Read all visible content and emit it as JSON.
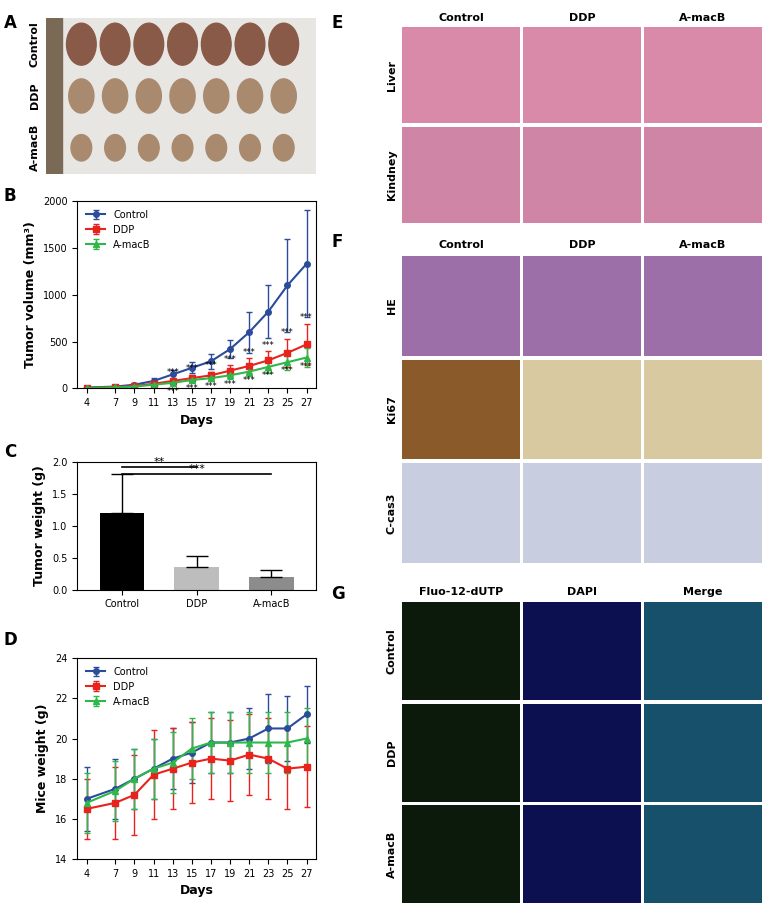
{
  "panel_labels": [
    "A",
    "B",
    "C",
    "D",
    "E",
    "F",
    "G"
  ],
  "chart_data": [
    {
      "type": "line",
      "xlabel": "Days",
      "ylabel": "Tumor volume (mm³)",
      "x": [
        4,
        7,
        9,
        11,
        13,
        15,
        17,
        19,
        21,
        23,
        25,
        27
      ],
      "xlim": [
        3,
        28
      ],
      "xticks": [
        4,
        7,
        9,
        11,
        13,
        15,
        17,
        19,
        21,
        23,
        25,
        27
      ],
      "ylim": [
        0,
        2000
      ],
      "yticks": [
        0,
        500,
        1000,
        1500,
        2000
      ],
      "grid": false,
      "legend": "upper left",
      "series": [
        {
          "name": "Control",
          "color": "#2b4c9b",
          "marker": "o",
          "values": [
            10,
            20,
            40,
            80,
            150,
            220,
            290,
            420,
            600,
            820,
            1100,
            1330
          ],
          "error": [
            5,
            10,
            15,
            30,
            50,
            60,
            80,
            100,
            220,
            280,
            500,
            570
          ]
        },
        {
          "name": "DDP",
          "color": "#e8221c",
          "marker": "s",
          "values": [
            5,
            15,
            25,
            50,
            80,
            110,
            140,
            190,
            240,
            300,
            380,
            470
          ],
          "error": [
            2,
            5,
            10,
            15,
            25,
            35,
            40,
            60,
            80,
            100,
            150,
            220
          ],
          "significance": {
            "x": [
              13,
              15,
              17,
              19,
              21,
              23,
              25,
              27
            ],
            "text": "***"
          }
        },
        {
          "name": "A-macB",
          "color": "#2eb84a",
          "marker": "^",
          "values": [
            5,
            12,
            20,
            40,
            60,
            90,
            110,
            140,
            180,
            230,
            280,
            330
          ],
          "error": [
            2,
            4,
            8,
            12,
            20,
            25,
            30,
            40,
            50,
            60,
            80,
            100
          ],
          "significance": {
            "x": [
              13,
              15,
              17,
              19,
              21,
              23,
              25,
              27
            ],
            "text": "***"
          }
        }
      ]
    },
    {
      "type": "bar",
      "ylabel": "Tumor weight (g)",
      "categories": [
        "Control",
        "DDP",
        "A-macB"
      ],
      "values": [
        1.2,
        0.35,
        0.19
      ],
      "error": [
        0.6,
        0.18,
        0.11
      ],
      "colors": [
        "#000000",
        "#bdbdbd",
        "#8c8c8c"
      ],
      "ylim": [
        0,
        2.0
      ],
      "yticks": [
        {
          "value": 0,
          "label": "0.0"
        },
        0.5,
        {
          "value": 1,
          "label": "1.0"
        },
        1.5,
        {
          "value": 2,
          "label": "2.0"
        }
      ],
      "grid": false,
      "significance": [
        {
          "pair": [
            "Control",
            "DDP"
          ],
          "text": "**"
        },
        {
          "pair": [
            "Control",
            "A-macB"
          ],
          "text": "***"
        }
      ]
    },
    {
      "type": "line",
      "xlabel": "Days",
      "ylabel": "Mice weight (g)",
      "x": [
        4,
        7,
        9,
        11,
        13,
        15,
        17,
        19,
        21,
        23,
        25,
        27
      ],
      "xlim": [
        3,
        28
      ],
      "xticks": [
        4,
        7,
        9,
        11,
        13,
        15,
        17,
        19,
        21,
        23,
        25,
        27
      ],
      "ylim": [
        14,
        24
      ],
      "yticks": [
        14,
        16,
        18,
        20,
        22,
        24
      ],
      "grid": false,
      "legend": "upper left",
      "series": [
        {
          "name": "Control",
          "color": "#2b4c9b",
          "marker": "o",
          "values": [
            17,
            17.5,
            18,
            18.5,
            19,
            19.3,
            19.8,
            19.8,
            20,
            20.5,
            20.5,
            21.2
          ],
          "error": [
            1.6,
            1.5,
            1.5,
            1.5,
            1.5,
            1.5,
            1.5,
            1.5,
            1.5,
            1.7,
            1.6,
            1.4
          ]
        },
        {
          "name": "DDP",
          "color": "#e8221c",
          "marker": "s",
          "values": [
            16.5,
            16.8,
            17.2,
            18.2,
            18.5,
            18.8,
            19,
            18.9,
            19.2,
            19,
            18.5,
            18.6
          ],
          "error": [
            1.5,
            1.8,
            2,
            2.2,
            2,
            2,
            2,
            2,
            2,
            2,
            2,
            2
          ]
        },
        {
          "name": "A-macB",
          "color": "#2eb84a",
          "marker": "^",
          "values": [
            16.8,
            17.4,
            18,
            18.5,
            18.8,
            19.5,
            19.8,
            19.8,
            19.8,
            19.8,
            19.8,
            20.0
          ],
          "error": [
            1.5,
            1.5,
            1.5,
            1.5,
            1.5,
            1.5,
            1.5,
            1.5,
            1.5,
            1.5,
            1.5,
            1.5
          ]
        }
      ]
    }
  ],
  "images": {
    "A": {
      "row_labels": [
        "Control",
        "DDP",
        "A-macB"
      ]
    },
    "E": {
      "column_labels": [
        "Control",
        "DDP",
        "A-macB"
      ],
      "row_labels": [
        "Liver",
        "Kindney"
      ]
    },
    "F": {
      "column_labels": [
        "Control",
        "DDP",
        "A-macB"
      ],
      "row_labels": [
        "HE",
        "Ki67",
        "C-cas3"
      ]
    },
    "G": {
      "column_labels": [
        "Fluo-12-dUTP",
        "DAPI",
        "Merge"
      ],
      "row_labels": [
        "Control",
        "DDP",
        "A-macB"
      ]
    }
  }
}
